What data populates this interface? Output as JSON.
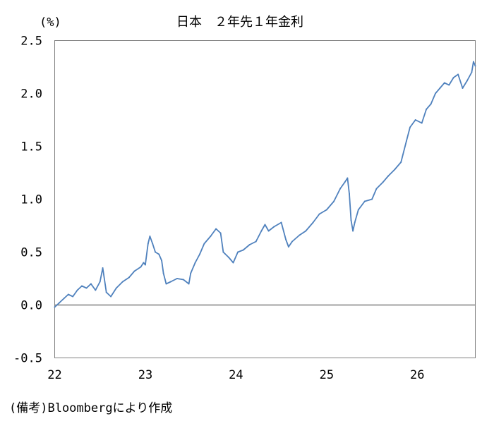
{
  "chart_data": {
    "type": "line",
    "title": "日本　２年先１年金利",
    "ylabel": "(%)",
    "xlabel": "",
    "source": "(備考)Bloombergにより作成",
    "ylim": [
      -0.5,
      2.5
    ],
    "xlim": [
      22.0,
      26.64
    ],
    "y_ticks": [
      2.5,
      2.0,
      1.5,
      1.0,
      0.5,
      0.0,
      -0.5
    ],
    "y_tick_labels": [
      "2.5",
      "2.0",
      "1.5",
      "1.0",
      "0.5",
      "0.0",
      "-0.5"
    ],
    "x_ticks": [
      22,
      23,
      24,
      25,
      26
    ],
    "x_tick_labels": [
      "22",
      "23",
      "24",
      "25",
      "26"
    ],
    "grid": false,
    "line_color": "#4f81bd",
    "zero_line_color": "#7f7f7f",
    "series": [
      {
        "name": "",
        "x": [
          22.0,
          22.05,
          22.1,
          22.15,
          22.2,
          22.25,
          22.3,
          22.35,
          22.4,
          22.45,
          22.5,
          22.53,
          22.57,
          22.62,
          22.68,
          22.75,
          22.82,
          22.88,
          22.95,
          22.98,
          23.0,
          23.03,
          23.05,
          23.08,
          23.11,
          23.15,
          23.18,
          23.2,
          23.23,
          23.28,
          23.35,
          23.42,
          23.48,
          23.5,
          23.55,
          23.6,
          23.65,
          23.72,
          23.78,
          23.83,
          23.86,
          23.92,
          23.97,
          24.02,
          24.08,
          24.15,
          24.22,
          24.28,
          24.32,
          24.36,
          24.42,
          24.5,
          24.55,
          24.58,
          24.62,
          24.7,
          24.77,
          24.85,
          24.92,
          25.0,
          25.08,
          25.15,
          25.2,
          25.23,
          25.25,
          25.27,
          25.29,
          25.31,
          25.35,
          25.42,
          25.5,
          25.55,
          25.62,
          25.68,
          25.75,
          25.82,
          25.88,
          25.92,
          25.98,
          26.05,
          26.1,
          26.15,
          26.2,
          26.25,
          26.3,
          26.35,
          26.4,
          26.45,
          26.5,
          26.55,
          26.6,
          26.62,
          26.64
        ],
        "y": [
          -0.02,
          0.02,
          0.06,
          0.1,
          0.08,
          0.14,
          0.18,
          0.16,
          0.2,
          0.14,
          0.22,
          0.35,
          0.12,
          0.08,
          0.16,
          0.22,
          0.26,
          0.32,
          0.36,
          0.4,
          0.38,
          0.58,
          0.65,
          0.58,
          0.5,
          0.48,
          0.42,
          0.3,
          0.2,
          0.22,
          0.25,
          0.24,
          0.2,
          0.3,
          0.4,
          0.48,
          0.58,
          0.65,
          0.72,
          0.68,
          0.5,
          0.45,
          0.4,
          0.5,
          0.52,
          0.57,
          0.6,
          0.7,
          0.76,
          0.7,
          0.74,
          0.78,
          0.62,
          0.55,
          0.6,
          0.66,
          0.7,
          0.78,
          0.86,
          0.9,
          0.98,
          1.1,
          1.16,
          1.2,
          1.05,
          0.8,
          0.7,
          0.78,
          0.9,
          0.98,
          1.0,
          1.1,
          1.16,
          1.22,
          1.28,
          1.35,
          1.55,
          1.68,
          1.75,
          1.72,
          1.85,
          1.9,
          2.0,
          2.05,
          2.1,
          2.08,
          2.15,
          2.18,
          2.05,
          2.12,
          2.2,
          2.3,
          2.26
        ]
      }
    ]
  }
}
